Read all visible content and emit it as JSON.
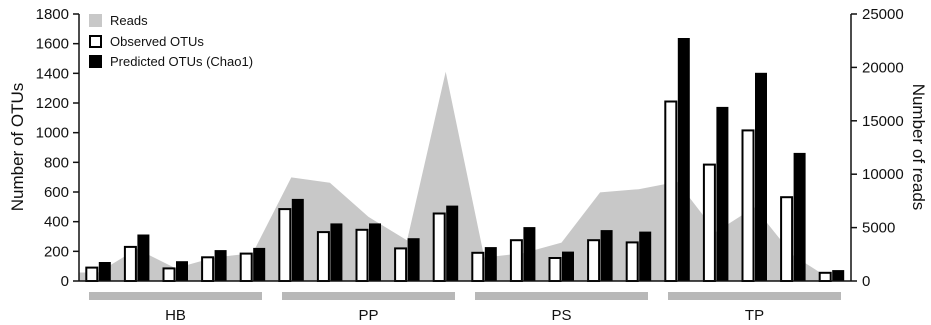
{
  "chart_data": {
    "type": "bar",
    "y_left": {
      "label": "Number of OTUs",
      "ylim": [
        0,
        1800
      ],
      "ticks": [
        "0",
        "200",
        "400",
        "600",
        "800",
        "1000",
        "1200",
        "1400",
        "1600",
        "1800"
      ]
    },
    "y_right": {
      "label": "Number of reads",
      "ylim": [
        0,
        25000
      ],
      "ticks": [
        "0",
        "5000",
        "10000",
        "15000",
        "20000",
        "25000"
      ]
    },
    "legend": [
      {
        "name": "Reads",
        "color": "#c8c8c8",
        "kind": "area"
      },
      {
        "name": "Observed OTUs",
        "color": "#ffffff",
        "kind": "open-bar"
      },
      {
        "name": "Predicted OTUs (Chao1)",
        "color": "#000000",
        "kind": "filled-bar"
      }
    ],
    "legend_position": "top-left",
    "groups": [
      {
        "label": "HB",
        "samples": 5
      },
      {
        "label": "PP",
        "samples": 5
      },
      {
        "label": "PS",
        "samples": 5
      },
      {
        "label": "TP",
        "samples": 5
      }
    ],
    "series": [
      {
        "name": "Observed OTUs",
        "axis": "left",
        "values": [
          90,
          230,
          85,
          160,
          185,
          485,
          330,
          345,
          220,
          455,
          190,
          275,
          155,
          275,
          260,
          1210,
          785,
          1015,
          565,
          55
        ]
      },
      {
        "name": "Predicted OTUs (Chao1)",
        "axis": "left",
        "values": [
          125,
          310,
          130,
          205,
          220,
          550,
          385,
          385,
          285,
          505,
          225,
          360,
          195,
          340,
          330,
          1635,
          1170,
          1400,
          860,
          70
        ]
      },
      {
        "name": "Reads",
        "axis": "right",
        "values": [
          800,
          3000,
          1200,
          2200,
          2600,
          9700,
          9200,
          6000,
          3800,
          19600,
          2200,
          2600,
          3600,
          8300,
          8600,
          9300,
          4600,
          6900,
          2400,
          100
        ]
      }
    ]
  }
}
